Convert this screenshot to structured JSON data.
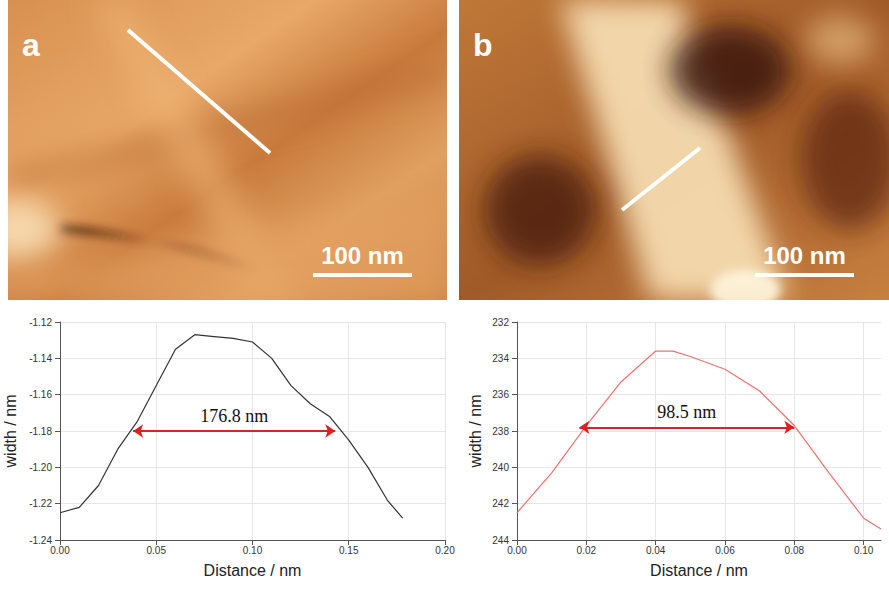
{
  "images": [
    {
      "label": "a",
      "scale_bar": "100 nm"
    },
    {
      "label": "b",
      "scale_bar": "100 nm"
    }
  ],
  "chart_data": [
    {
      "type": "line",
      "xlabel": "Distance / nm",
      "ylabel": "width / nm",
      "color": "#333333",
      "grid": true,
      "x": [
        0,
        0.01,
        0.02,
        0.03,
        0.04,
        0.05,
        0.06,
        0.07,
        0.08,
        0.09,
        0.1,
        0.11,
        0.12,
        0.13,
        0.14,
        0.15,
        0.16,
        0.17,
        0.178
      ],
      "values": [
        -1.225,
        -1.222,
        -1.21,
        -1.19,
        -1.175,
        -1.155,
        -1.135,
        -1.127,
        -1.128,
        -1.129,
        -1.131,
        -1.14,
        -1.155,
        -1.165,
        -1.172,
        -1.185,
        -1.2,
        -1.218,
        -1.228
      ],
      "xlim": [
        0,
        0.2
      ],
      "xticks": [
        {
          "value": 0,
          "label": "0.00"
        },
        {
          "value": 0.05,
          "label": "0.05"
        },
        {
          "value": 0.1,
          "label": "0.10"
        },
        {
          "value": 0.15,
          "label": "0.15"
        },
        {
          "value": 0.2,
          "label": "0.20"
        }
      ],
      "ylim": [
        -1.24,
        -1.12
      ],
      "yticks": [
        {
          "value": -1.24,
          "label": "-1.24"
        },
        {
          "value": -1.22,
          "label": "-1.22"
        },
        {
          "value": -1.2,
          "label": "-1.20"
        },
        {
          "value": -1.18,
          "label": "-1.18"
        },
        {
          "value": -1.16,
          "label": "-1.16"
        },
        {
          "value": -1.14,
          "label": "-1.14"
        },
        {
          "value": -1.12,
          "label": "-1.12"
        }
      ],
      "annotations": [
        {
          "text": "176.8 nm",
          "x": [
            0.038,
            0.143
          ],
          "y": -1.18,
          "color": "#e02020"
        }
      ]
    },
    {
      "type": "line",
      "xlabel": "Distance / nm",
      "ylabel": "width / nm",
      "color": "#f07070",
      "grid": true,
      "x": [
        0,
        0.01,
        0.02,
        0.03,
        0.04,
        0.045,
        0.05,
        0.06,
        0.07,
        0.08,
        0.09,
        0.1,
        0.105
      ],
      "values": [
        242.5,
        240.3,
        237.7,
        235.3,
        233.6,
        233.6,
        233.9,
        234.6,
        235.8,
        237.7,
        240.3,
        242.8,
        243.4
      ],
      "xlim": [
        0,
        0.105
      ],
      "xticks": [
        {
          "value": 0,
          "label": "0.00"
        },
        {
          "value": 0.02,
          "label": "0.02"
        },
        {
          "value": 0.04,
          "label": "0.04"
        },
        {
          "value": 0.06,
          "label": "0.06"
        },
        {
          "value": 0.08,
          "label": "0.08"
        },
        {
          "value": 0.1,
          "label": "0.10"
        }
      ],
      "ylim": [
        244,
        232
      ],
      "yticks": [
        232,
        234,
        236,
        238,
        240,
        242,
        244
      ],
      "annotations": [
        {
          "text": "98.5 nm",
          "x": [
            0.018,
            0.08
          ],
          "y": 237.8,
          "color": "#e02020"
        }
      ]
    }
  ]
}
